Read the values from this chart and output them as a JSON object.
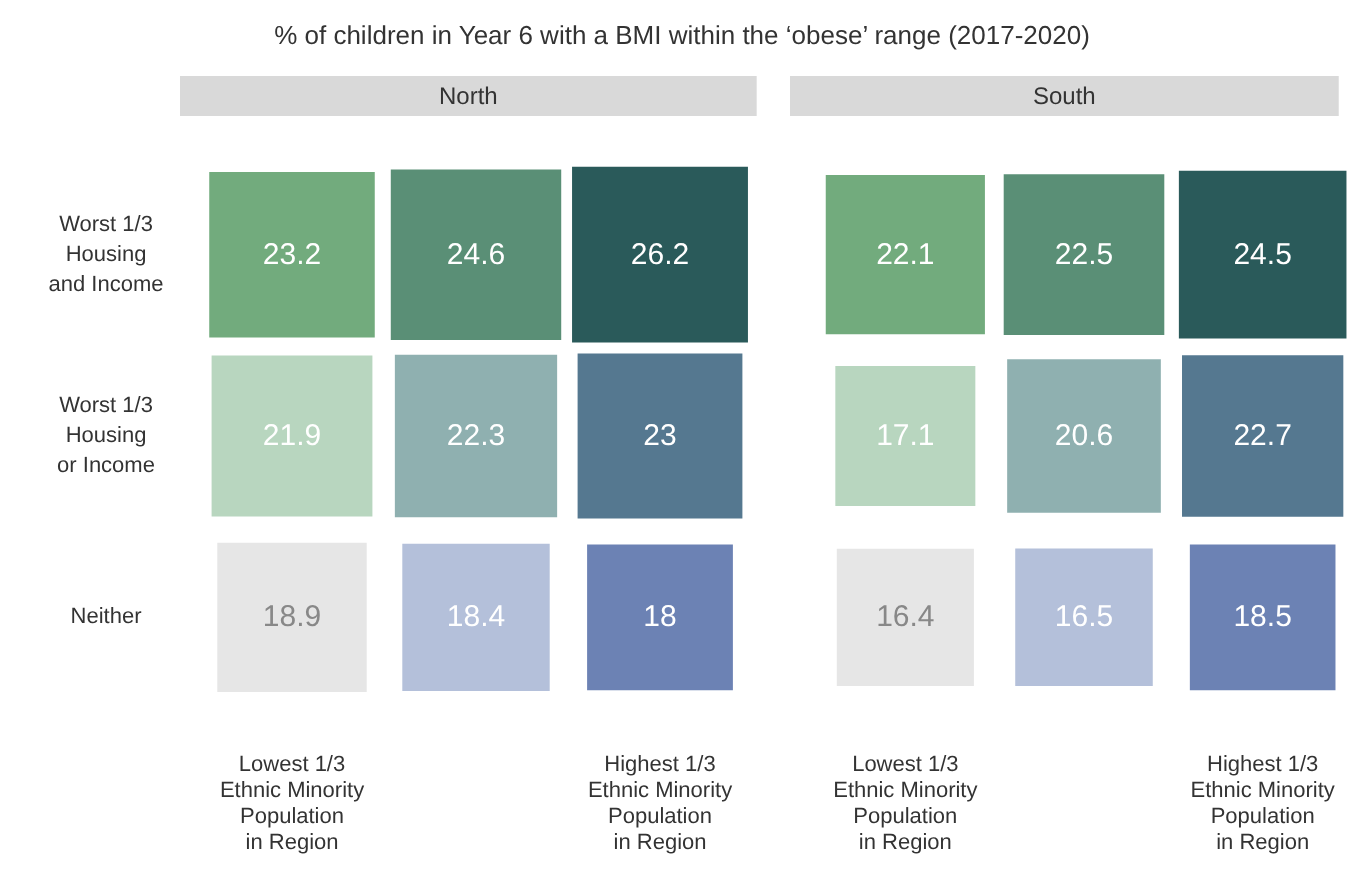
{
  "chart_data": [
    {
      "type": "heatmap",
      "title": "North",
      "annotations": [
        "% of children in Year 6 with a BMI within the ‘obese’ range (2017-2020)"
      ],
      "categories": [
        "Lowest 1/3\nEthnic Minority\nPopulation\nin Region",
        null,
        "Highest 1/3\nEthnic Minority\nPopulation\nin Region"
      ],
      "y_categories": [
        "Worst 1/3\nHousing\nand Income",
        "Worst 1/3\nHousing\nor Income",
        "Neither"
      ],
      "cells": [
        [
          23.2,
          24.6,
          26.2
        ],
        [
          21.9,
          22.3,
          23
        ],
        [
          18.9,
          18.4,
          18
        ]
      ],
      "colors": [
        [
          "#72ab7d",
          "#5a8f76",
          "#2a5a5a"
        ],
        [
          "#b8d6bf",
          "#8fb0b0",
          "#557890"
        ],
        [
          "#e6e6e6",
          "#b4c0da",
          "#6c82b4"
        ]
      ],
      "data_labels": true
    },
    {
      "type": "heatmap",
      "title": "South",
      "tick_labels": "x",
      "categories": [
        "Lowest 1/3\nEthnic Minority\nPopulation\nin Region",
        null,
        "Highest 1/3\nEthnic Minority\nPopulation\nin Region"
      ],
      "y_categories": [
        null,
        null,
        null
      ],
      "cells": [
        [
          22.1,
          22.5,
          24.5
        ],
        [
          17.1,
          20.6,
          22.7
        ],
        [
          16.4,
          16.5,
          18.5
        ]
      ],
      "colors": [
        [
          "#72ab7d",
          "#5a8f76",
          "#2a5a5a"
        ],
        [
          "#b8d6bf",
          "#8fb0b0",
          "#557890"
        ],
        [
          "#e6e6e6",
          "#b4c0da",
          "#6c82b4"
        ]
      ],
      "data_labels": true
    }
  ]
}
